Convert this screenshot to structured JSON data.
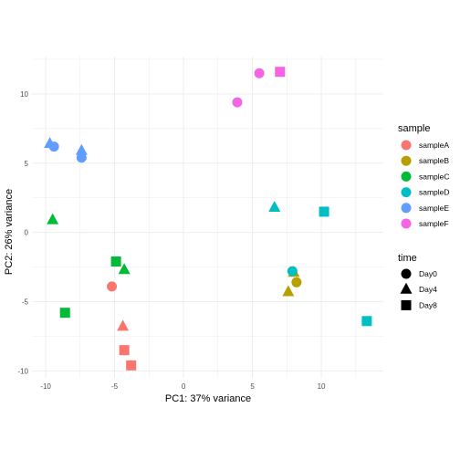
{
  "chart_data": {
    "type": "scatter",
    "xlabel": "PC1: 37% variance",
    "ylabel": "PC2: 26% variance",
    "xlim": [
      -11,
      14.5
    ],
    "ylim": [
      -10.5,
      12.7
    ],
    "x_ticks": [
      -10,
      -5,
      0,
      5,
      10
    ],
    "y_ticks": [
      -10,
      -5,
      0,
      5,
      10
    ],
    "grid": true,
    "legend_position": "right",
    "color_legend": {
      "title": "sample",
      "entries": [
        {
          "name": "sampleA",
          "color": "#F8766D"
        },
        {
          "name": "sampleB",
          "color": "#B79F00"
        },
        {
          "name": "sampleC",
          "color": "#00BA38"
        },
        {
          "name": "sampleD",
          "color": "#00BFC4"
        },
        {
          "name": "sampleE",
          "color": "#619CFF"
        },
        {
          "name": "sampleF",
          "color": "#F564E3"
        }
      ]
    },
    "shape_legend": {
      "title": "time",
      "entries": [
        {
          "name": "Day0",
          "shape": "circle"
        },
        {
          "name": "Day4",
          "shape": "triangle"
        },
        {
          "name": "Day8",
          "shape": "square"
        }
      ]
    },
    "points": [
      {
        "sample": "sampleA",
        "time": "Day0",
        "x": -5.2,
        "y": -3.9
      },
      {
        "sample": "sampleA",
        "time": "Day4",
        "x": -4.4,
        "y": -6.8
      },
      {
        "sample": "sampleA",
        "time": "Day8",
        "x": -4.3,
        "y": -8.5
      },
      {
        "sample": "sampleA",
        "time": "Day8",
        "x": -3.8,
        "y": -9.6
      },
      {
        "sample": "sampleB",
        "time": "Day0",
        "x": 8.2,
        "y": -3.6
      },
      {
        "sample": "sampleB",
        "time": "Day4",
        "x": 8.0,
        "y": -2.9
      },
      {
        "sample": "sampleB",
        "time": "Day4",
        "x": 7.6,
        "y": -4.3
      },
      {
        "sample": "sampleC",
        "time": "Day4",
        "x": -9.5,
        "y": 0.9
      },
      {
        "sample": "sampleC",
        "time": "Day8",
        "x": -4.9,
        "y": -2.1
      },
      {
        "sample": "sampleC",
        "time": "Day4",
        "x": -4.3,
        "y": -2.7
      },
      {
        "sample": "sampleC",
        "time": "Day8",
        "x": -8.6,
        "y": -5.8
      },
      {
        "sample": "sampleD",
        "time": "Day4",
        "x": 6.6,
        "y": 1.8
      },
      {
        "sample": "sampleD",
        "time": "Day8",
        "x": 10.2,
        "y": 1.5
      },
      {
        "sample": "sampleD",
        "time": "Day0",
        "x": 7.9,
        "y": -2.8
      },
      {
        "sample": "sampleD",
        "time": "Day8",
        "x": 13.3,
        "y": -6.4
      },
      {
        "sample": "sampleE",
        "time": "Day4",
        "x": -9.7,
        "y": 6.4
      },
      {
        "sample": "sampleE",
        "time": "Day0",
        "x": -9.4,
        "y": 6.2
      },
      {
        "sample": "sampleE",
        "time": "Day4",
        "x": -7.4,
        "y": 5.9
      },
      {
        "sample": "sampleE",
        "time": "Day0",
        "x": -7.4,
        "y": 5.4
      },
      {
        "sample": "sampleF",
        "time": "Day0",
        "x": 5.5,
        "y": 11.5
      },
      {
        "sample": "sampleF",
        "time": "Day8",
        "x": 7.0,
        "y": 11.6
      },
      {
        "sample": "sampleF",
        "time": "Day0",
        "x": 3.9,
        "y": 9.4
      }
    ]
  }
}
